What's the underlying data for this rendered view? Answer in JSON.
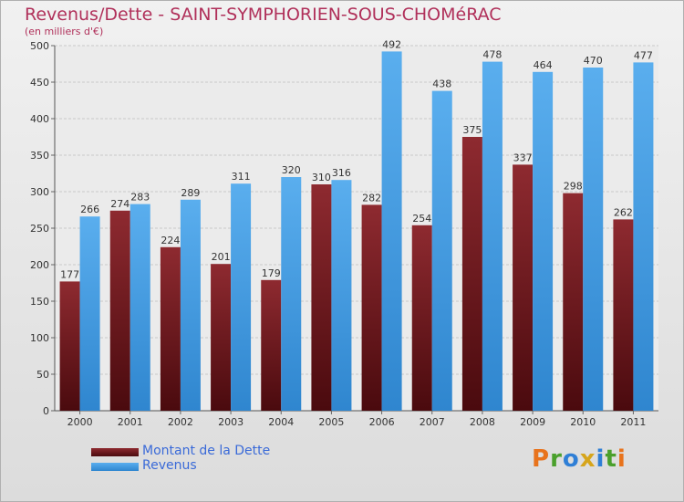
{
  "chart_data": {
    "type": "bar",
    "title": "Revenus/Dette - SAINT-SYMPHORIEN-SOUS-CHOMéRAC",
    "subtitle": "(en milliers d'€)",
    "categories": [
      "2000",
      "2001",
      "2002",
      "2003",
      "2004",
      "2005",
      "2006",
      "2007",
      "2008",
      "2009",
      "2010",
      "2011"
    ],
    "series": [
      {
        "name": "Montant de la Dette",
        "color": "#7a1e24",
        "values": [
          177,
          274,
          224,
          201,
          179,
          310,
          282,
          254,
          375,
          337,
          298,
          262
        ]
      },
      {
        "name": "Revenus",
        "color": "#3f9ae2",
        "values": [
          266,
          283,
          289,
          311,
          320,
          316,
          492,
          438,
          478,
          464,
          470,
          477
        ]
      }
    ],
    "ylim": [
      0,
      500
    ],
    "yticks": [
      0,
      50,
      100,
      150,
      200,
      250,
      300,
      350,
      400,
      450,
      500
    ],
    "grid": true,
    "legend": "bottom-left"
  },
  "logo": {
    "letters": [
      "P",
      "r",
      "o",
      "x",
      "i",
      "t",
      "i"
    ],
    "colors": [
      "#e8731c",
      "#4aa02c",
      "#2f7fd6",
      "#d6a51c",
      "#2f7fd6",
      "#4aa02c",
      "#e8731c"
    ]
  }
}
